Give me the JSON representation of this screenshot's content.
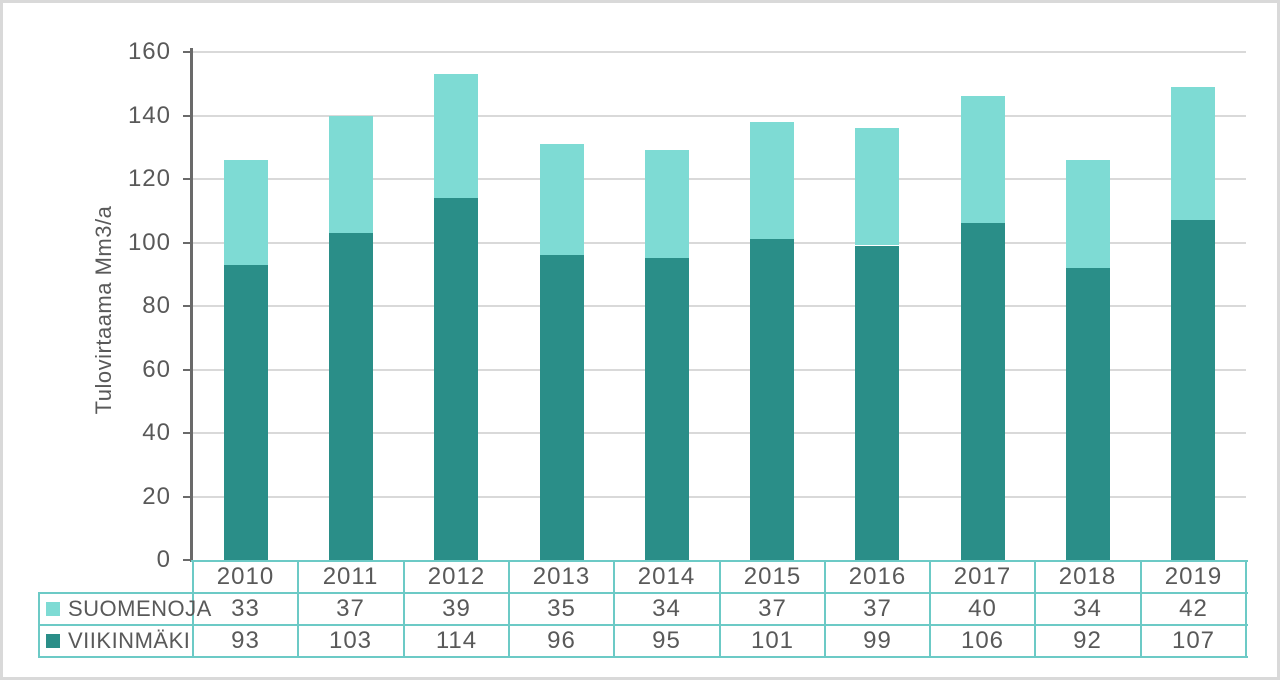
{
  "chart_data": {
    "type": "bar",
    "stacked": true,
    "title": "",
    "xlabel": "",
    "ylabel": "Tulovirtaama Mm3/a",
    "ylim": [
      0,
      160
    ],
    "yticks": [
      0,
      20,
      40,
      60,
      80,
      100,
      120,
      140,
      160
    ],
    "grid": true,
    "legend_position": "data-table-row-headers",
    "data_table_shown": true,
    "categories": [
      "2010",
      "2011",
      "2012",
      "2013",
      "2014",
      "2015",
      "2016",
      "2017",
      "2018",
      "2019"
    ],
    "series": [
      {
        "name": "SUOMENOJA",
        "stack_position": "top",
        "color": "#7edbd4",
        "values": [
          33,
          37,
          39,
          35,
          34,
          37,
          37,
          40,
          34,
          42
        ]
      },
      {
        "name": "VIIKINMÄKI",
        "stack_position": "bottom",
        "color": "#2a8e88",
        "values": [
          93,
          103,
          114,
          96,
          95,
          101,
          99,
          106,
          92,
          107
        ]
      }
    ]
  },
  "colors": {
    "background": "#ffffff",
    "frame_border": "#d9d9d9",
    "gridline": "#d9d9d9",
    "axis_line": "#6a6a6a",
    "text": "#595959",
    "table_border": "#6ccac6"
  }
}
